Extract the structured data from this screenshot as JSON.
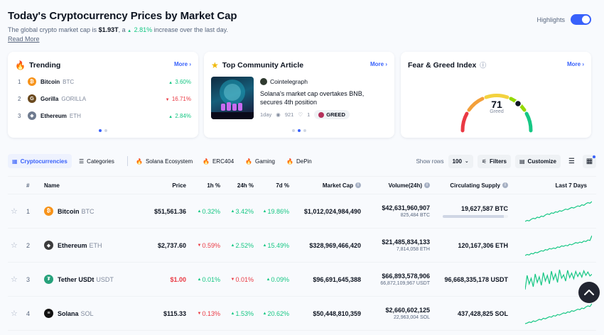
{
  "header": {
    "title": "Today's Cryptocurrency Prices by Market Cap",
    "subtitle_prefix": "The global crypto market cap is ",
    "market_cap": "$1.93T",
    "subtitle_mid": ", a ",
    "change": "2.81%",
    "subtitle_suffix": " increase over the last day.",
    "read_more": "Read More",
    "highlights_label": "Highlights"
  },
  "trending": {
    "title": "Trending",
    "more": "More",
    "items": [
      {
        "rank": "1",
        "name": "Bitcoin",
        "symbol": "BTC",
        "change": "3.60%",
        "dir": "up",
        "icon": "bitcoin-icon",
        "color": "#f7931a",
        "glyph": "₿"
      },
      {
        "rank": "2",
        "name": "Gorilla",
        "symbol": "GORILLA",
        "change": "16.71%",
        "dir": "down",
        "icon": "gorilla-icon",
        "color": "#6b4a1f",
        "glyph": "G"
      },
      {
        "rank": "3",
        "name": "Ethereum",
        "symbol": "ETH",
        "change": "2.84%",
        "dir": "up",
        "icon": "ethereum-icon",
        "color": "#6f7b8f",
        "glyph": "◆"
      }
    ]
  },
  "community": {
    "title": "Top Community Article",
    "more": "More",
    "source": "Cointelegraph",
    "headline": "Solana's market cap overtakes BNB, secures 4th position",
    "age": "1day",
    "views": "921",
    "likes": "1",
    "sentiment": "GREED"
  },
  "fear_greed": {
    "title": "Fear & Greed Index",
    "more": "More",
    "value": "71",
    "label": "Greed"
  },
  "toolbar": {
    "tabs": [
      "Cryptocurrencies",
      "Categories",
      "Solana Ecosystem",
      "ERC404",
      "Gaming",
      "DePin"
    ],
    "show_rows_label": "Show rows",
    "show_rows_value": "100",
    "filters": "Filters",
    "customize": "Customize"
  },
  "table": {
    "headers": {
      "rank": "#",
      "name": "Name",
      "price": "Price",
      "h1": "1h %",
      "h24": "24h %",
      "d7": "7d %",
      "mcap": "Market Cap",
      "vol": "Volume(24h)",
      "supply": "Circulating Supply",
      "spark": "Last 7 Days"
    },
    "rows": [
      {
        "rank": "1",
        "name": "Bitcoin",
        "symbol": "BTC",
        "icon": "bitcoin-icon",
        "color": "#f7931a",
        "glyph": "₿",
        "price": "$51,561.36",
        "price_color": "#0d1421",
        "h1": "0.32%",
        "h1_dir": "up",
        "h24": "3.42%",
        "h24_dir": "up",
        "d7": "19.86%",
        "d7_dir": "up",
        "mcap": "$1,012,024,984,490",
        "vol": "$42,631,960,907",
        "vol_sub": "825,484 BTC",
        "supply": "19,627,587 BTC",
        "supply_fraction": 0.935,
        "show_bar": true,
        "spark": [
          10,
          14,
          12,
          18,
          22,
          20,
          26,
          24,
          30,
          28,
          34,
          38,
          36,
          42,
          40,
          46,
          44,
          50,
          48,
          52,
          56,
          54,
          58,
          62,
          60,
          64,
          68,
          66,
          72,
          70,
          76,
          80,
          78,
          84
        ]
      },
      {
        "rank": "2",
        "name": "Ethereum",
        "symbol": "ETH",
        "icon": "ethereum-icon",
        "color": "#3c3c3d",
        "glyph": "◆",
        "price": "$2,737.60",
        "price_color": "#0d1421",
        "h1": "0.59%",
        "h1_dir": "down",
        "h24": "2.52%",
        "h24_dir": "up",
        "d7": "15.49%",
        "d7_dir": "up",
        "mcap": "$328,969,466,420",
        "vol": "$21,485,834,133",
        "vol_sub": "7,814,058 ETH",
        "supply": "120,167,306 ETH",
        "supply_fraction": 0,
        "show_bar": false,
        "spark": [
          12,
          16,
          14,
          20,
          18,
          24,
          22,
          26,
          30,
          28,
          34,
          32,
          38,
          36,
          40,
          38,
          44,
          42,
          48,
          46,
          50,
          48,
          54,
          52,
          56,
          60,
          58,
          62,
          60,
          66,
          64,
          70,
          68,
          86
        ]
      },
      {
        "rank": "3",
        "name": "Tether USDt",
        "symbol": "USDT",
        "icon": "tether-icon",
        "color": "#26a17b",
        "glyph": "₮",
        "price": "$1.00",
        "price_color": "#ea3943",
        "h1": "0.01%",
        "h1_dir": "up",
        "h24": "0.01%",
        "h24_dir": "down",
        "d7": "0.09%",
        "d7_dir": "up",
        "mcap": "$96,691,645,388",
        "vol": "$66,893,578,906",
        "vol_sub": "66,872,109,967 USDT",
        "supply": "96,668,335,178 USDT",
        "supply_fraction": 0,
        "show_bar": false,
        "spark": [
          20,
          70,
          40,
          60,
          30,
          75,
          45,
          65,
          35,
          80,
          50,
          70,
          40,
          85,
          55,
          75,
          45,
          90,
          60,
          72,
          50,
          88,
          62,
          78,
          58,
          84,
          66,
          80,
          64,
          86,
          70,
          82,
          68,
          74
        ]
      },
      {
        "rank": "4",
        "name": "Solana",
        "symbol": "SOL",
        "icon": "solana-icon",
        "color": "#111111",
        "glyph": "≡",
        "price": "$115.33",
        "price_color": "#0d1421",
        "h1": "0.13%",
        "h1_dir": "down",
        "h24": "1.53%",
        "h24_dir": "up",
        "d7": "20.62%",
        "d7_dir": "up",
        "mcap": "$50,448,810,359",
        "vol": "$2,660,602,125",
        "vol_sub": "22,963,004 SOL",
        "supply": "437,428,825 SOL",
        "supply_fraction": 0,
        "show_bar": false,
        "spark": [
          10,
          12,
          16,
          14,
          20,
          18,
          22,
          26,
          24,
          30,
          28,
          32,
          36,
          34,
          40,
          38,
          44,
          42,
          46,
          50,
          48,
          54,
          52,
          58,
          56,
          60,
          64,
          62,
          68,
          66,
          72,
          76,
          74,
          84
        ]
      }
    ]
  },
  "colors": {
    "up": "#16c784",
    "down": "#ea3943",
    "accent": "#3861fb"
  }
}
